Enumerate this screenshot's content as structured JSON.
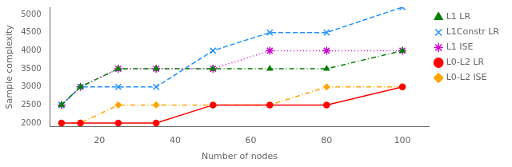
{
  "chart_data": {
    "type": "line",
    "x": [
      10,
      15,
      25,
      35,
      50,
      65,
      80,
      100
    ],
    "series": [
      {
        "name": "L1 LR",
        "color": "#008000",
        "values": [
          2500,
          3000,
          3500,
          3500,
          3500,
          3500,
          3500,
          4000
        ],
        "marker": "triangle",
        "line_style": "dashdot"
      },
      {
        "name": "L1Constr LR",
        "color": "#1e90ff",
        "values": [
          2500,
          3000,
          3000,
          3000,
          4000,
          4500,
          4500,
          5200
        ],
        "marker": "x",
        "line_style": "dashed"
      },
      {
        "name": "L1 ISE",
        "color": "#cc00cc",
        "values": [
          2500,
          3000,
          3500,
          3500,
          3500,
          4000,
          4000,
          4000
        ],
        "marker": "star",
        "line_style": "dotted"
      },
      {
        "name": "L0-L2 LR",
        "color": "#ff0000",
        "values": [
          2000,
          2000,
          2000,
          2000,
          2500,
          2500,
          2500,
          3000
        ],
        "marker": "circle",
        "line_style": "solid"
      },
      {
        "name": "L0-L2 ISE",
        "color": "#ffa500",
        "values": [
          2000,
          2000,
          2500,
          2500,
          2500,
          2500,
          3000,
          3000
        ],
        "marker": "diamond",
        "line_style": "dashdot"
      }
    ],
    "xlabel": "Number of nodes",
    "ylabel": "Sample complexity",
    "xlim": [
      7,
      107
    ],
    "ylim": [
      1900,
      5200
    ],
    "xticks": [
      20,
      40,
      60,
      80,
      100
    ],
    "yticks": [
      2000,
      2500,
      3000,
      3500,
      4000,
      4500,
      5000
    ],
    "grid": false,
    "legend": "right"
  }
}
